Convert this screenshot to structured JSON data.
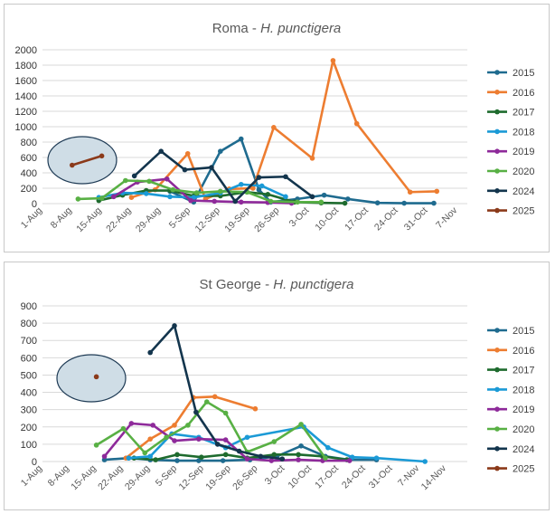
{
  "charts": [
    {
      "title_site": "Roma",
      "title_sep": " - ",
      "title_species": "H. punctigera"
    },
    {
      "title_site": "St George",
      "title_sep": " - ",
      "title_species": "H. punctigera"
    }
  ],
  "chart_data": [
    {
      "type": "line",
      "title": "Roma - H. punctigera",
      "xlabel": "",
      "ylabel": "",
      "ylim": [
        0,
        2000
      ],
      "yticks": [
        0,
        200,
        400,
        600,
        800,
        1000,
        1200,
        1400,
        1600,
        1800,
        2000
      ],
      "categories": [
        "1-Aug",
        "8-Aug",
        "15-Aug",
        "22-Aug",
        "29-Aug",
        "5-Sep",
        "12-Sep",
        "19-Sep",
        "26-Sep",
        "3-Oct",
        "10-Oct",
        "17-Oct",
        "24-Oct",
        "31-Oct",
        "7-Nov"
      ],
      "grid": true,
      "legend_position": "right",
      "series": [
        {
          "name": "2015",
          "color": "#1f6b8f",
          "points": [
            [
              4.3,
              160
            ],
            [
              5.1,
              20
            ],
            [
              6.0,
              680
            ],
            [
              6.7,
              840
            ],
            [
              7.3,
              180
            ],
            [
              7.7,
              20
            ],
            [
              8.6,
              60
            ],
            [
              9.5,
              110
            ],
            [
              10.3,
              60
            ],
            [
              11.3,
              10
            ],
            [
              12.2,
              5
            ],
            [
              13.2,
              5
            ]
          ]
        },
        {
          "name": "2016",
          "color": "#ed7d31",
          "points": [
            [
              3.0,
              80
            ],
            [
              3.8,
              180
            ],
            [
              4.9,
              650
            ],
            [
              5.5,
              60
            ],
            [
              6.3,
              190
            ],
            [
              7.1,
              200
            ],
            [
              7.8,
              990
            ],
            [
              9.1,
              590
            ],
            [
              9.8,
              1860
            ],
            [
              10.6,
              1040
            ],
            [
              12.4,
              150
            ],
            [
              13.3,
              160
            ]
          ]
        },
        {
          "name": "2017",
          "color": "#1e6b2e",
          "points": [
            [
              1.9,
              40
            ],
            [
              2.7,
              110
            ],
            [
              3.5,
              170
            ],
            [
              4.3,
              170
            ],
            [
              5.1,
              100
            ],
            [
              6.0,
              100
            ],
            [
              6.9,
              150
            ],
            [
              7.6,
              120
            ],
            [
              8.5,
              20
            ],
            [
              9.4,
              10
            ],
            [
              10.2,
              5
            ]
          ]
        },
        {
          "name": "2018",
          "color": "#1b9ad6",
          "points": [
            [
              1.9,
              80
            ],
            [
              2.7,
              140
            ],
            [
              3.5,
              130
            ],
            [
              4.3,
              90
            ],
            [
              5.1,
              80
            ],
            [
              6.0,
              140
            ],
            [
              6.7,
              250
            ],
            [
              7.4,
              230
            ],
            [
              8.2,
              90
            ]
          ]
        },
        {
          "name": "2019",
          "color": "#8e2a9a",
          "points": [
            [
              2.4,
              90
            ],
            [
              3.2,
              280
            ],
            [
              4.2,
              320
            ],
            [
              5.0,
              40
            ],
            [
              5.8,
              30
            ],
            [
              6.7,
              20
            ],
            [
              7.6,
              15
            ],
            [
              8.4,
              5
            ]
          ]
        },
        {
          "name": "2020",
          "color": "#58b044",
          "points": [
            [
              1.2,
              60
            ],
            [
              2.0,
              70
            ],
            [
              2.8,
              300
            ],
            [
              3.6,
              290
            ],
            [
              4.4,
              180
            ],
            [
              5.2,
              140
            ],
            [
              6.0,
              160
            ],
            [
              6.9,
              150
            ],
            [
              7.7,
              30
            ],
            [
              8.6,
              20
            ],
            [
              9.4,
              20
            ]
          ]
        },
        {
          "name": "2024",
          "color": "#13354d",
          "points": [
            [
              3.1,
              360
            ],
            [
              4.0,
              680
            ],
            [
              4.8,
              440
            ],
            [
              5.7,
              470
            ],
            [
              6.5,
              30
            ],
            [
              7.3,
              340
            ],
            [
              8.2,
              350
            ],
            [
              9.1,
              90
            ]
          ]
        },
        {
          "name": "2025",
          "color": "#8b3a1a",
          "points": [
            [
              1.0,
              500
            ],
            [
              2.0,
              620
            ]
          ]
        }
      ]
    },
    {
      "type": "line",
      "title": "St George - H. punctigera",
      "xlabel": "",
      "ylabel": "",
      "ylim": [
        0,
        900
      ],
      "yticks": [
        0,
        100,
        200,
        300,
        400,
        500,
        600,
        700,
        800,
        900
      ],
      "categories": [
        "1-Aug",
        "8-Aug",
        "15-Aug",
        "22-Aug",
        "29-Aug",
        "5-Sep",
        "12-Sep",
        "19-Sep",
        "26-Sep",
        "3-Oct",
        "10-Oct",
        "17-Oct",
        "24-Oct",
        "31-Oct",
        "7-Nov",
        "14-Nov"
      ],
      "grid": true,
      "legend_position": "right",
      "series": [
        {
          "name": "2015",
          "color": "#1f6b8f",
          "points": [
            [
              2.3,
              10
            ],
            [
              3.2,
              20
            ],
            [
              4.0,
              10
            ],
            [
              5.0,
              5
            ],
            [
              5.8,
              5
            ],
            [
              6.7,
              5
            ],
            [
              7.7,
              10
            ],
            [
              8.7,
              30
            ],
            [
              9.6,
              90
            ],
            [
              10.5,
              30
            ],
            [
              11.4,
              10
            ],
            [
              12.4,
              10
            ]
          ]
        },
        {
          "name": "2016",
          "color": "#ed7d31",
          "points": [
            [
              3.1,
              20
            ],
            [
              4.0,
              130
            ],
            [
              4.9,
              210
            ],
            [
              5.6,
              370
            ],
            [
              6.4,
              375
            ],
            [
              7.9,
              305
            ]
          ]
        },
        {
          "name": "2017",
          "color": "#1e6b2e",
          "points": [
            [
              3.4,
              20
            ],
            [
              4.2,
              10
            ],
            [
              5.0,
              40
            ],
            [
              5.9,
              25
            ],
            [
              6.8,
              40
            ],
            [
              7.6,
              20
            ],
            [
              8.6,
              40
            ],
            [
              9.5,
              40
            ],
            [
              10.4,
              30
            ],
            [
              11.3,
              10
            ]
          ]
        },
        {
          "name": "2018",
          "color": "#1b9ad6",
          "points": [
            [
              3.2,
              20
            ],
            [
              4.0,
              30
            ],
            [
              4.8,
              160
            ],
            [
              5.8,
              140
            ],
            [
              6.8,
              80
            ],
            [
              7.6,
              140
            ],
            [
              9.7,
              200
            ],
            [
              10.6,
              80
            ],
            [
              11.5,
              25
            ],
            [
              12.4,
              20
            ],
            [
              14.2,
              0
            ]
          ]
        },
        {
          "name": "2019",
          "color": "#8e2a9a",
          "points": [
            [
              2.3,
              30
            ],
            [
              3.3,
              220
            ],
            [
              4.1,
              210
            ],
            [
              4.9,
              120
            ],
            [
              5.8,
              130
            ],
            [
              6.8,
              125
            ],
            [
              7.6,
              15
            ],
            [
              8.5,
              5
            ],
            [
              9.5,
              10
            ],
            [
              10.4,
              5
            ],
            [
              11.4,
              5
            ]
          ]
        },
        {
          "name": "2020",
          "color": "#58b044",
          "points": [
            [
              2.0,
              95
            ],
            [
              3.0,
              190
            ],
            [
              3.8,
              50
            ],
            [
              4.6,
              140
            ],
            [
              5.4,
              210
            ],
            [
              6.1,
              345
            ],
            [
              6.8,
              280
            ],
            [
              7.6,
              55
            ],
            [
              8.6,
              115
            ],
            [
              9.6,
              215
            ],
            [
              10.5,
              20
            ]
          ]
        },
        {
          "name": "2024",
          "color": "#13354d",
          "points": [
            [
              4.0,
              630
            ],
            [
              4.9,
              785
            ],
            [
              5.7,
              285
            ],
            [
              6.5,
              100
            ],
            [
              7.3,
              60
            ],
            [
              8.1,
              30
            ],
            [
              8.9,
              15
            ]
          ]
        },
        {
          "name": "2025",
          "color": "#8b3a1a",
          "points": [
            [
              2.0,
              490
            ]
          ]
        }
      ]
    }
  ]
}
